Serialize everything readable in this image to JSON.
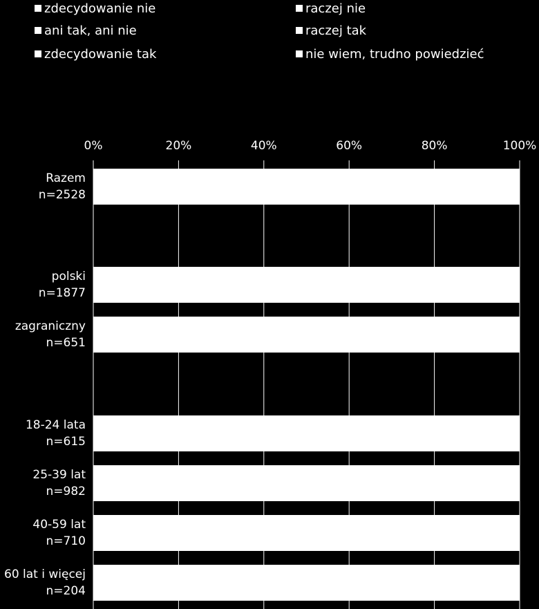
{
  "legend": {
    "items": [
      {
        "label": "zdecydowanie nie",
        "color": "#ffffff"
      },
      {
        "label": "raczej nie",
        "color": "#ffffff"
      },
      {
        "label": "ani tak, ani nie",
        "color": "#ffffff"
      },
      {
        "label": "raczej tak",
        "color": "#ffffff"
      },
      {
        "label": "zdecydowanie tak",
        "color": "#ffffff"
      },
      {
        "label": "nie wiem, trudno powiedzieć",
        "color": "#ffffff"
      }
    ]
  },
  "chart_data": {
    "type": "bar",
    "orientation": "horizontal",
    "stacked": "100%",
    "title": "",
    "xlabel": "",
    "ylabel": "",
    "xlim": [
      0,
      100
    ],
    "x_ticks": [
      "0%",
      "20%",
      "40%",
      "60%",
      "80%",
      "100%"
    ],
    "grid": true,
    "legend_position": "top",
    "background_color": "#000000",
    "bar_color": "#ffffff",
    "categories": [
      {
        "line1": "Razem",
        "line2": "n=2528"
      },
      {
        "line1": "polski",
        "line2": "n=1877"
      },
      {
        "line1": "zagraniczny",
        "line2": "n=651"
      },
      {
        "line1": "18-24 lata",
        "line2": "n=615"
      },
      {
        "line1": "25-39 lat",
        "line2": "n=982"
      },
      {
        "line1": "40-59 lat",
        "line2": "n=710"
      },
      {
        "line1": "60 lat i więcej",
        "line2": "n=204"
      }
    ],
    "values": [
      100,
      100,
      100,
      100,
      100,
      100,
      100
    ]
  }
}
